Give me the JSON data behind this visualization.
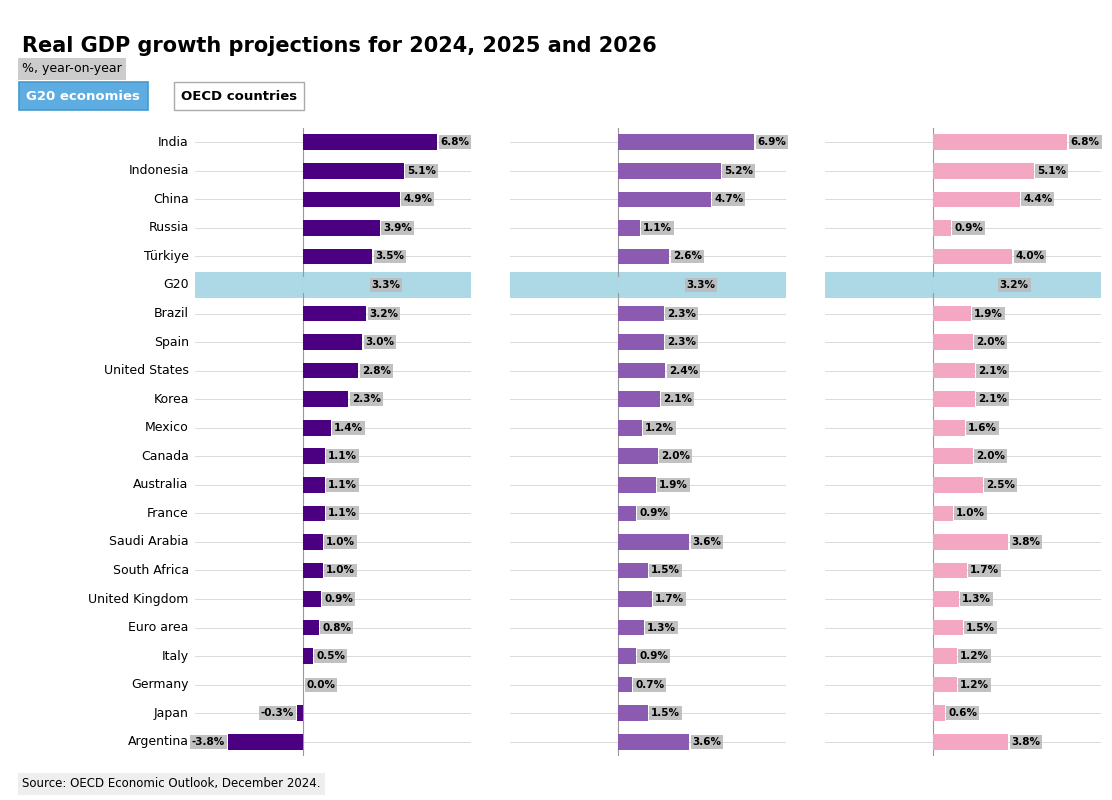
{
  "title": "Real GDP growth projections for 2024, 2025 and 2026",
  "subtitle": "%, year-on-year",
  "source": "Source: OECD Economic Outlook, December 2024.",
  "tab1": "G20 economies",
  "tab2": "OECD countries",
  "countries": [
    "India",
    "Indonesia",
    "China",
    "Russia",
    "Türkiye",
    "G20",
    "Brazil",
    "Spain",
    "United States",
    "Korea",
    "Mexico",
    "Canada",
    "Australia",
    "France",
    "Saudi Arabia",
    "South Africa",
    "United Kingdom",
    "Euro area",
    "Italy",
    "Germany",
    "Japan",
    "Argentina"
  ],
  "values_2024": [
    6.8,
    5.1,
    4.9,
    3.9,
    3.5,
    3.3,
    3.2,
    3.0,
    2.8,
    2.3,
    1.4,
    1.1,
    1.1,
    1.1,
    1.0,
    1.0,
    0.9,
    0.8,
    0.5,
    0.0,
    -0.3,
    -3.8
  ],
  "values_2025": [
    6.9,
    5.2,
    4.7,
    1.1,
    2.6,
    3.3,
    2.3,
    2.3,
    2.4,
    2.1,
    1.2,
    2.0,
    1.9,
    0.9,
    3.6,
    1.5,
    1.7,
    1.3,
    0.9,
    0.7,
    1.5,
    3.6
  ],
  "values_2026": [
    6.8,
    5.1,
    4.4,
    0.9,
    4.0,
    3.2,
    1.9,
    2.0,
    2.1,
    2.1,
    1.6,
    2.0,
    2.5,
    1.0,
    3.8,
    1.7,
    1.3,
    1.5,
    1.2,
    1.2,
    0.6,
    3.8
  ],
  "color_2024": "#4B0082",
  "color_2025": "#8B5BB1",
  "color_2026": "#F4A7C3",
  "color_g20": "#ADD8E6",
  "label_bg": "#BBBBBB",
  "title_fontsize": 15,
  "subtitle_fontsize": 9,
  "country_fontsize": 9,
  "value_fontsize": 7.5,
  "background_color": "#FFFFFF",
  "tab1_bg": "#5DADE2",
  "tab1_text": "#FFFFFF",
  "tab2_bg": "#FFFFFF",
  "tab2_text": "#000000",
  "xmin": -5.5,
  "xmax": 8.5
}
